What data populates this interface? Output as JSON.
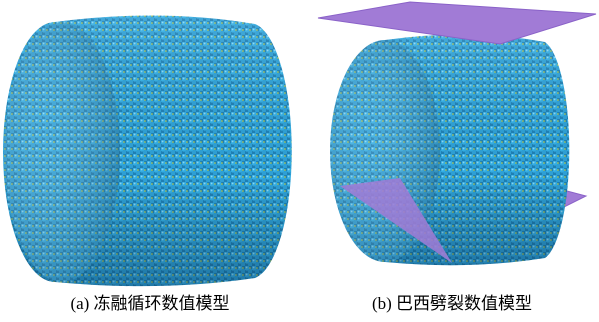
{
  "panels": [
    {
      "caption": "(a) 冻融循环数值模型"
    },
    {
      "caption": "(b) 巴西劈裂数值模型"
    }
  ]
}
